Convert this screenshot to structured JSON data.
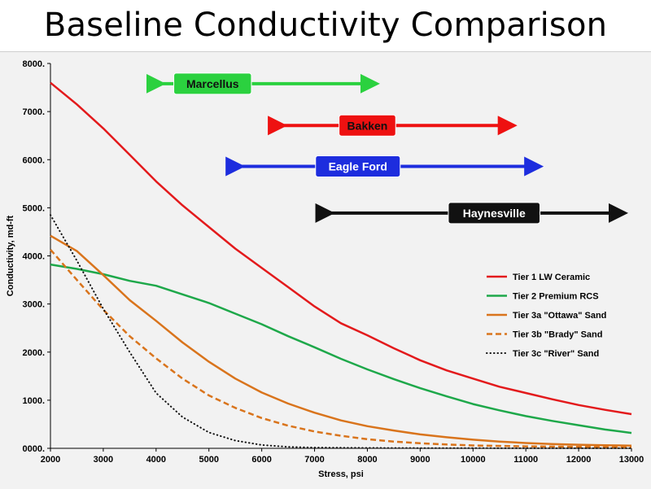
{
  "title": "Baseline Conductivity Comparison",
  "chart_data": {
    "type": "line",
    "xlabel": "Stress, psi",
    "ylabel": "Conductivity, md-ft",
    "xlim": [
      2000,
      13000
    ],
    "ylim": [
      0,
      8000
    ],
    "x_ticks": [
      "2000",
      "3000",
      "4000",
      "5000",
      "6000",
      "7000",
      "8000",
      "9000",
      "10000",
      "11000",
      "12000",
      "13000"
    ],
    "y_ticks": [
      "0000.",
      "1000.",
      "2000.",
      "3000.",
      "4000.",
      "5000.",
      "6000.",
      "7000.",
      "8000."
    ],
    "grid": "none",
    "legend_position": "right",
    "series": [
      {
        "name": "Tier 1 LW Ceramic",
        "color": "#e31a1c",
        "style": "solid",
        "points": [
          [
            2000,
            7600
          ],
          [
            2500,
            7150
          ],
          [
            3000,
            6650
          ],
          [
            3500,
            6100
          ],
          [
            4000,
            5550
          ],
          [
            4500,
            5050
          ],
          [
            5000,
            4600
          ],
          [
            5500,
            4150
          ],
          [
            6000,
            3750
          ],
          [
            6500,
            3350
          ],
          [
            7000,
            2950
          ],
          [
            7500,
            2600
          ],
          [
            8000,
            2350
          ],
          [
            8500,
            2080
          ],
          [
            9000,
            1830
          ],
          [
            9500,
            1620
          ],
          [
            10000,
            1450
          ],
          [
            10500,
            1280
          ],
          [
            11000,
            1150
          ],
          [
            11500,
            1020
          ],
          [
            12000,
            900
          ],
          [
            12500,
            800
          ],
          [
            13000,
            710
          ]
        ]
      },
      {
        "name": "Tier 2 Premium RCS",
        "color": "#1ea84a",
        "style": "solid",
        "points": [
          [
            2000,
            3820
          ],
          [
            2500,
            3730
          ],
          [
            3000,
            3620
          ],
          [
            3500,
            3480
          ],
          [
            4000,
            3380
          ],
          [
            4500,
            3200
          ],
          [
            5000,
            3020
          ],
          [
            5500,
            2800
          ],
          [
            6000,
            2580
          ],
          [
            6500,
            2330
          ],
          [
            7000,
            2100
          ],
          [
            7500,
            1860
          ],
          [
            8000,
            1640
          ],
          [
            8500,
            1440
          ],
          [
            9000,
            1250
          ],
          [
            9500,
            1080
          ],
          [
            10000,
            920
          ],
          [
            10500,
            790
          ],
          [
            11000,
            670
          ],
          [
            11500,
            570
          ],
          [
            12000,
            480
          ],
          [
            12500,
            390
          ],
          [
            13000,
            320
          ]
        ]
      },
      {
        "name": "Tier 3a \"Ottawa\" Sand",
        "color": "#d9741c",
        "style": "solid",
        "points": [
          [
            2000,
            4420
          ],
          [
            2500,
            4100
          ],
          [
            3000,
            3600
          ],
          [
            3500,
            3080
          ],
          [
            4000,
            2650
          ],
          [
            4500,
            2200
          ],
          [
            5000,
            1800
          ],
          [
            5500,
            1450
          ],
          [
            6000,
            1160
          ],
          [
            6500,
            930
          ],
          [
            7000,
            740
          ],
          [
            7500,
            580
          ],
          [
            8000,
            460
          ],
          [
            8500,
            370
          ],
          [
            9000,
            290
          ],
          [
            9500,
            230
          ],
          [
            10000,
            180
          ],
          [
            10500,
            140
          ],
          [
            11000,
            110
          ],
          [
            11500,
            90
          ],
          [
            12000,
            75
          ],
          [
            12500,
            65
          ],
          [
            13000,
            55
          ]
        ]
      },
      {
        "name": "Tier 3b \"Brady\" Sand",
        "color": "#d9741c",
        "style": "dashed",
        "points": [
          [
            2000,
            4130
          ],
          [
            2500,
            3500
          ],
          [
            3000,
            2880
          ],
          [
            3500,
            2330
          ],
          [
            4000,
            1870
          ],
          [
            4500,
            1450
          ],
          [
            5000,
            1100
          ],
          [
            5500,
            840
          ],
          [
            6000,
            630
          ],
          [
            6500,
            470
          ],
          [
            7000,
            350
          ],
          [
            7500,
            260
          ],
          [
            8000,
            190
          ],
          [
            8500,
            140
          ],
          [
            9000,
            105
          ],
          [
            9500,
            80
          ],
          [
            10000,
            60
          ],
          [
            11000,
            40
          ],
          [
            12000,
            30
          ],
          [
            13000,
            25
          ]
        ]
      },
      {
        "name": "Tier 3c \"River\" Sand",
        "color": "#111111",
        "style": "dotted",
        "points": [
          [
            2000,
            4850
          ],
          [
            2500,
            3900
          ],
          [
            3000,
            2900
          ],
          [
            3500,
            2000
          ],
          [
            4000,
            1150
          ],
          [
            4500,
            650
          ],
          [
            5000,
            330
          ],
          [
            5500,
            160
          ],
          [
            6000,
            70
          ],
          [
            6500,
            30
          ],
          [
            7000,
            15
          ],
          [
            8000,
            8
          ],
          [
            9000,
            5
          ],
          [
            10000,
            3
          ],
          [
            13000,
            2
          ]
        ]
      }
    ],
    "ranges": [
      {
        "label": "Marcellus",
        "from": 4000,
        "to": 8300,
        "color": "#2bd13f",
        "text_color": "#111111",
        "label_x": 5070,
        "label_y": 7580
      },
      {
        "label": "Bakken",
        "from": 6300,
        "to": 10900,
        "color": "#ee1111",
        "text_color": "#111111",
        "label_x": 8000,
        "label_y": 6710
      },
      {
        "label": "Eagle Ford",
        "from": 5500,
        "to": 11400,
        "color": "#1d2dde",
        "text_color": "#ffffff",
        "label_x": 7820,
        "label_y": 5860
      },
      {
        "label": "Haynesville",
        "from": 7200,
        "to": 13000,
        "color": "#111111",
        "text_color": "#ffffff",
        "label_x": 10400,
        "label_y": 4890
      }
    ]
  }
}
